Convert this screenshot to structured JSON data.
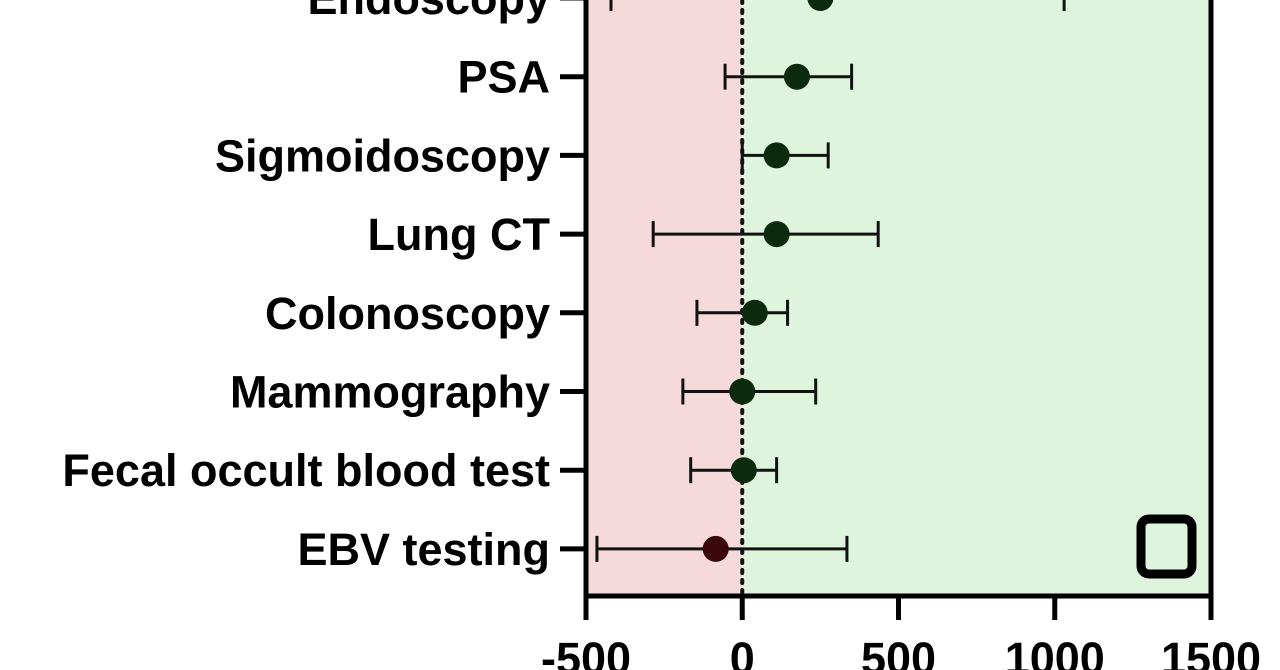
{
  "chart_data": {
    "type": "scatter",
    "subtype": "forest-plot",
    "title": "",
    "xlabel": "",
    "ylabel": "",
    "xlim": [
      -500,
      1500
    ],
    "xticks": [
      -500,
      0,
      500,
      1000,
      1500
    ],
    "xtick_labels": [
      "-500",
      "0",
      "500",
      "1000",
      "1500"
    ],
    "reference_line": 0,
    "categories": [
      "Endoscopy",
      "PSA",
      "Sigmoidoscopy",
      "Lung CT",
      "Colonoscopy",
      "Mammography",
      "Fecal occult blood test",
      "EBV testing"
    ],
    "values": [
      250,
      175,
      110,
      110,
      40,
      0,
      5,
      -85
    ],
    "lower": [
      -420,
      -55,
      0,
      -285,
      -145,
      -190,
      -165,
      -465
    ],
    "upper": [
      1030,
      350,
      275,
      435,
      145,
      235,
      110,
      335
    ],
    "grid": false,
    "legend": null,
    "region_colors": {
      "negative": "#f5d9db",
      "positive": "#dff4dc"
    },
    "colors": {
      "point_positive": "#0c2a0c",
      "point_negative": "#3a0808",
      "whisker": "#111111",
      "axis": "#000000"
    }
  },
  "icons": {
    "corner_marker": "rounded-square-outline-icon"
  }
}
